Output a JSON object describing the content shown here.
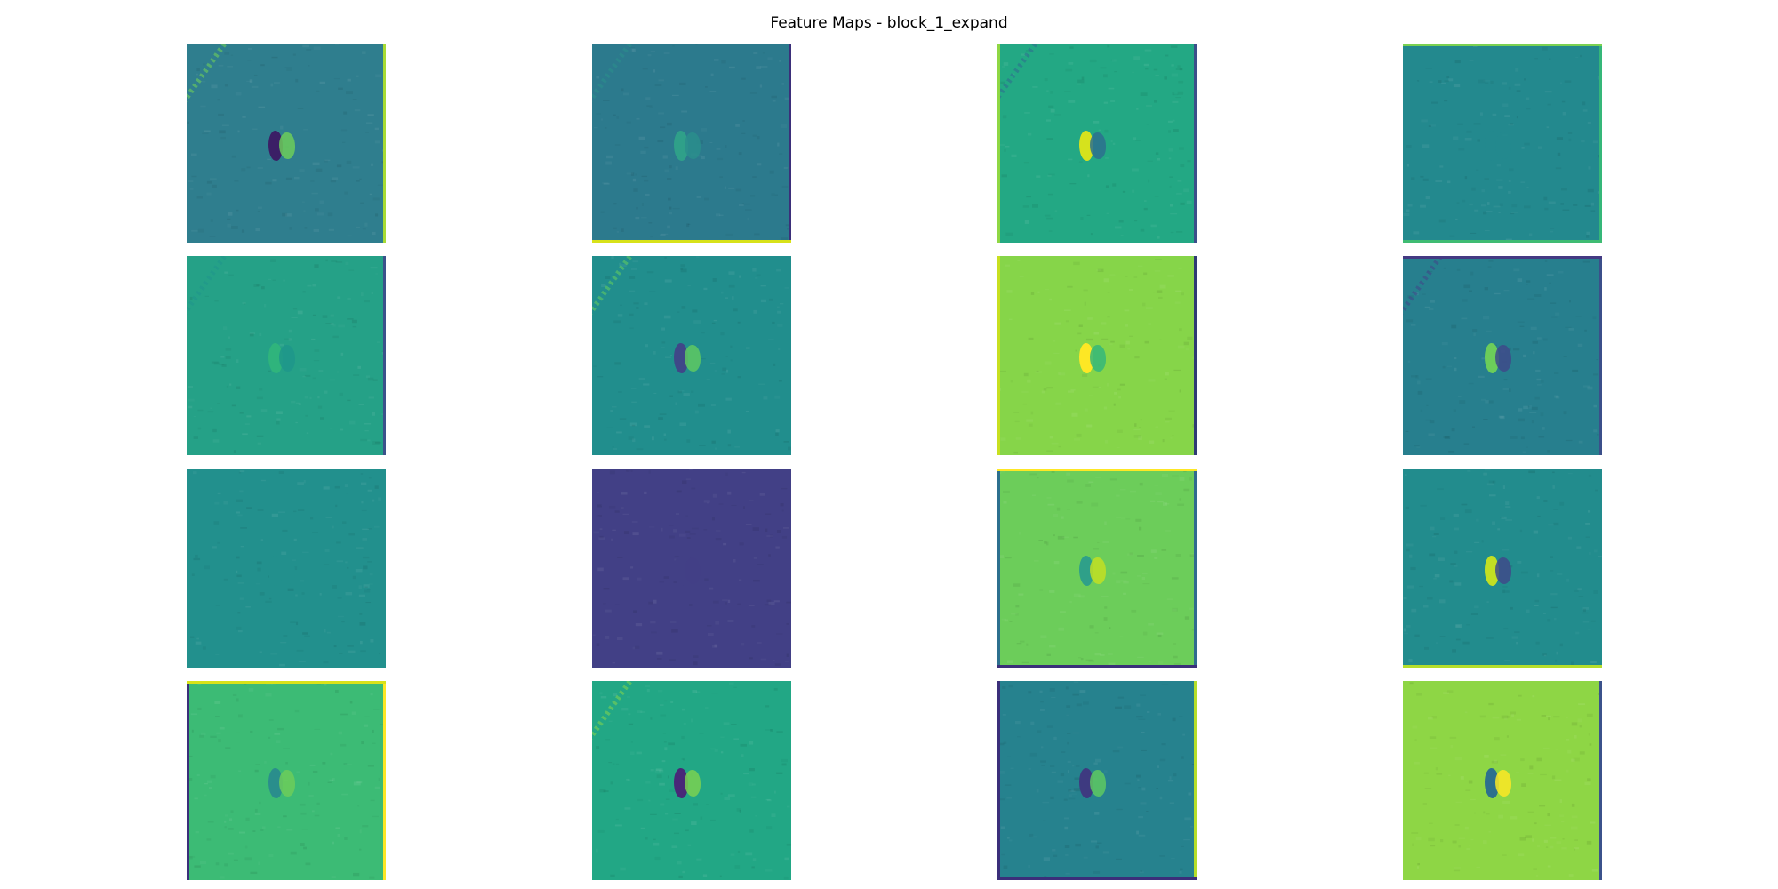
{
  "title": "Feature Maps - block_1_expand",
  "panels": [
    {
      "bg": "#2f7e8e",
      "left": "none",
      "right": "#a8db34",
      "top": "none",
      "bottom": "none",
      "blob": "#3b1f66",
      "blob2": "#6ccd5a",
      "diag": true
    },
    {
      "bg": "#2c7a8d",
      "left": "none",
      "right": "#3b2f7a",
      "top": "none",
      "bottom": "#d8e219",
      "blob": "#2fa089",
      "blob2": "#2a8e8c",
      "diag": true
    },
    {
      "bg": "#23a884",
      "left": "#8fd744",
      "right": "#3b4f8a",
      "top": "none",
      "bottom": "none",
      "blob": "#d6e21d",
      "blob2": "#2d708e",
      "diag": true
    },
    {
      "bg": "#23898e",
      "left": "none",
      "right": "#35b779",
      "top": "#7ad151",
      "bottom": "#3fbc73",
      "blob": "#23898e",
      "blob2": "#23898e",
      "diag": true
    },
    {
      "bg": "#25a187",
      "left": "none",
      "right": "#3b528b",
      "top": "none",
      "bottom": "none",
      "blob": "#2fb47c",
      "blob2": "#1f968b",
      "diag": true
    },
    {
      "bg": "#218e8d",
      "left": "none",
      "right": "none",
      "top": "none",
      "bottom": "none",
      "blob": "#3f4788",
      "blob2": "#5ec962",
      "diag": true
    },
    {
      "bg": "#86d549",
      "left": "#c8e020",
      "right": "#2e3a74",
      "top": "none",
      "bottom": "none",
      "blob": "#fde725",
      "blob2": "#35b779",
      "diag": false
    },
    {
      "bg": "#277f8e",
      "left": "none",
      "right": "#3b4f8a",
      "top": "#443a83",
      "bottom": "none",
      "blob": "#6ccd5a",
      "blob2": "#3e4a89",
      "diag": true
    },
    {
      "bg": "#22908d",
      "left": "none",
      "right": "none",
      "top": "none",
      "bottom": "none",
      "blob": "#22908d",
      "blob2": "#22908d",
      "diag": true
    },
    {
      "bg": "#424086",
      "left": "none",
      "right": "none",
      "top": "none",
      "bottom": "none",
      "blob": "#424086",
      "blob2": "#424086",
      "diag": true
    },
    {
      "bg": "#6ccd5a",
      "left": "#2d708e",
      "right": "#2f6b8e",
      "top": "#fde725",
      "bottom": "#3b2f7a",
      "blob": "#2fa089",
      "blob2": "#c2df23",
      "diag": false
    },
    {
      "bg": "#228c8d",
      "left": "none",
      "right": "none",
      "top": "none",
      "bottom": "#b5de2b",
      "blob": "#c2df23",
      "blob2": "#3e4a89",
      "diag": false
    },
    {
      "bg": "#3cbb75",
      "left": "#3b2f7a",
      "right": "#fde725",
      "top": "#d8e219",
      "bottom": "none",
      "blob": "#2a8e8c",
      "blob2": "#6ccd5a",
      "diag": false
    },
    {
      "bg": "#22a785",
      "left": "none",
      "right": "none",
      "top": "none",
      "bottom": "none",
      "blob": "#482878",
      "blob2": "#7ad151",
      "diag": true
    },
    {
      "bg": "#26828e",
      "left": "#3b2f7a",
      "right": "#b5de2b",
      "top": "none",
      "bottom": "#3b2f7a",
      "blob": "#3e3a80",
      "blob2": "#5ec962",
      "diag": false
    },
    {
      "bg": "#8ed645",
      "left": "none",
      "right": "#3b528b",
      "top": "none",
      "bottom": "none",
      "blob": "#2d708e",
      "blob2": "#fde725",
      "diag": false
    }
  ]
}
